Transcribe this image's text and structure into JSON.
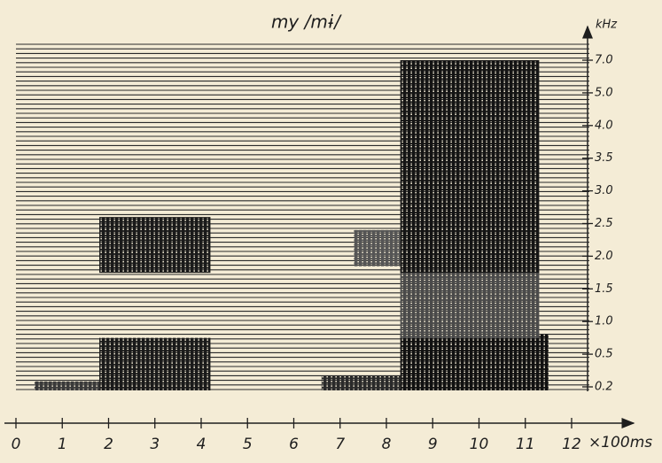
{
  "chart_data": {
    "type": "spectrogram",
    "title": "my /mɨ/",
    "x_label": "×100ms",
    "y_label": "kHz",
    "xlim": [
      0,
      12
    ],
    "xticks": [
      0,
      1,
      2,
      3,
      4,
      5,
      6,
      7,
      8,
      9,
      10,
      11,
      12
    ],
    "yticks": [
      0.2,
      0.5,
      {
        "value": 1,
        "label": "1.0"
      },
      1.5,
      {
        "value": 2,
        "label": "2.0"
      },
      2.5,
      {
        "value": 3,
        "label": "3.0"
      },
      3.5,
      {
        "value": 4,
        "label": "4.0"
      },
      {
        "value": 5,
        "label": "5.0"
      },
      {
        "value": 7,
        "label": "7.0"
      }
    ],
    "regions": [
      {
        "x": [
          0.4,
          1.8
        ],
        "freq": [
          0.2,
          0.25
        ],
        "color": "#3a3a3a"
      },
      {
        "x": [
          1.8,
          4.2
        ],
        "freq": [
          0.2,
          0.75
        ],
        "color": "#1a1a1a"
      },
      {
        "x": [
          1.8,
          4.2
        ],
        "freq": [
          1.8,
          2.6
        ],
        "color": "#1a1a1a"
      },
      {
        "x": [
          6.6,
          8.3
        ],
        "freq": [
          0.2,
          0.3
        ],
        "color": "#2a2a2a"
      },
      {
        "x": [
          7.3,
          8.3
        ],
        "freq": [
          1.9,
          2.4
        ],
        "color": "#555555"
      },
      {
        "x": [
          8.3,
          11.5
        ],
        "freq": [
          0.2,
          0.8
        ],
        "color": "#111111"
      },
      {
        "x": [
          8.3,
          11.3
        ],
        "freq": [
          0.8,
          1.8
        ],
        "color": "#4a4a4a"
      },
      {
        "x": [
          8.3,
          11.3
        ],
        "freq": [
          1.8,
          7
        ],
        "color": "#141414"
      }
    ]
  }
}
